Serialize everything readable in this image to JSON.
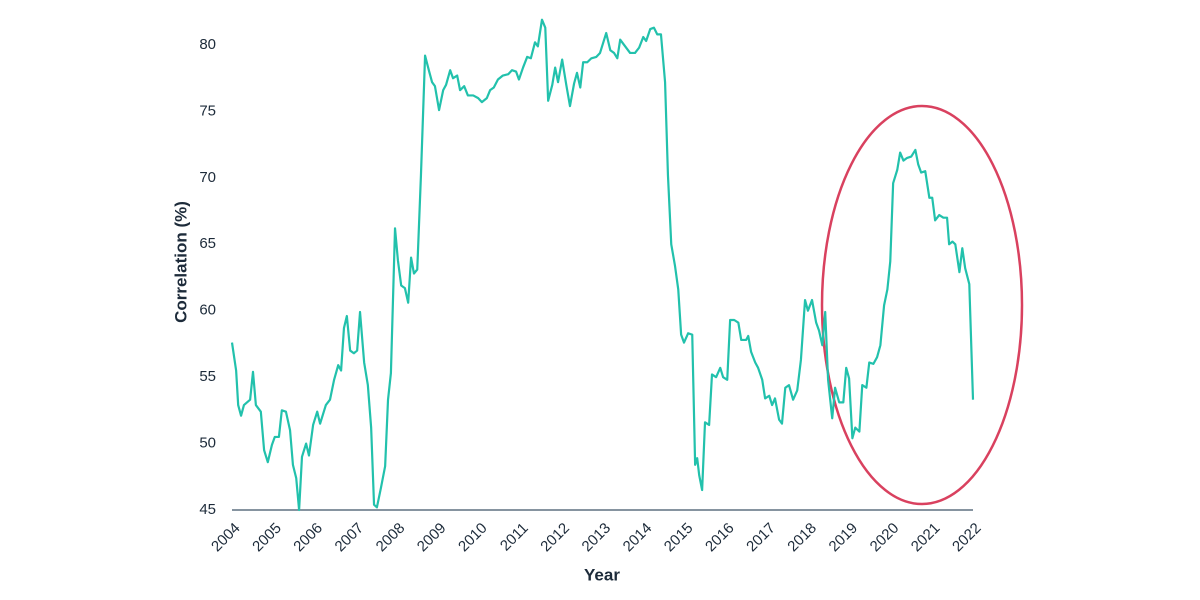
{
  "chart_data": {
    "type": "line",
    "x_label": "Year",
    "y_label": "Correlation (%)",
    "xlim": [
      2004,
      2022
    ],
    "xticks": [
      2004,
      2005,
      2006,
      2007,
      2008,
      2009,
      2010,
      2011,
      2012,
      2013,
      2014,
      2015,
      2016,
      2017,
      2018,
      2019,
      2020,
      2021,
      2022
    ],
    "ylim": [
      45,
      82
    ],
    "yticks": [
      45,
      50,
      55,
      60,
      65,
      70,
      75,
      80
    ],
    "grid": false,
    "series": [
      {
        "color": "#22c1ac",
        "x": [
          2004.0,
          2004.1,
          2004.15,
          2004.22,
          2004.29,
          2004.44,
          2004.51,
          2004.58,
          2004.7,
          2004.78,
          2004.87,
          2004.97,
          2005.04,
          2005.14,
          2005.21,
          2005.31,
          2005.41,
          2005.48,
          2005.56,
          2005.63,
          2005.7,
          2005.8,
          2005.87,
          2005.97,
          2006.07,
          2006.14,
          2006.28,
          2006.38,
          2006.48,
          2006.58,
          2006.65,
          2006.72,
          2006.79,
          2006.87,
          2006.96,
          2007.04,
          2007.11,
          2007.21,
          2007.3,
          2007.38,
          2007.45,
          2007.52,
          2007.62,
          2007.72,
          2007.79,
          2007.86,
          2007.96,
          2008.03,
          2008.11,
          2008.2,
          2008.28,
          2008.35,
          2008.42,
          2008.5,
          2008.59,
          2008.69,
          2008.79,
          2008.86,
          2008.93,
          2009.03,
          2009.13,
          2009.2,
          2009.3,
          2009.37,
          2009.47,
          2009.54,
          2009.64,
          2009.73,
          2009.86,
          2009.98,
          2010.07,
          2010.19,
          2010.27,
          2010.36,
          2010.46,
          2010.58,
          2010.71,
          2010.8,
          2010.9,
          2010.97,
          2011.07,
          2011.17,
          2011.26,
          2011.36,
          2011.43,
          2011.53,
          2011.61,
          2011.68,
          2011.78,
          2011.85,
          2011.92,
          2012.02,
          2012.12,
          2012.21,
          2012.31,
          2012.38,
          2012.46,
          2012.53,
          2012.63,
          2012.73,
          2012.85,
          2012.94,
          2013.04,
          2013.09,
          2013.19,
          2013.28,
          2013.36,
          2013.43,
          2013.55,
          2013.67,
          2013.79,
          2013.89,
          2013.99,
          2014.06,
          2014.16,
          2014.25,
          2014.33,
          2014.42,
          2014.52,
          2014.59,
          2014.67,
          2014.76,
          2014.84,
          2014.91,
          2014.98,
          2015.08,
          2015.18,
          2015.25,
          2015.3,
          2015.35,
          2015.42,
          2015.49,
          2015.59,
          2015.66,
          2015.76,
          2015.86,
          2015.93,
          2016.03,
          2016.1,
          2016.2,
          2016.3,
          2016.37,
          2016.49,
          2016.54,
          2016.61,
          2016.71,
          2016.78,
          2016.88,
          2016.95,
          2017.05,
          2017.12,
          2017.19,
          2017.29,
          2017.36,
          2017.44,
          2017.53,
          2017.63,
          2017.73,
          2017.82,
          2017.92,
          2017.99,
          2018.09,
          2018.19,
          2018.26,
          2018.34,
          2018.41,
          2018.48,
          2018.58,
          2018.65,
          2018.75,
          2018.85,
          2018.92,
          2018.99,
          2019.07,
          2019.14,
          2019.24,
          2019.31,
          2019.41,
          2019.48,
          2019.58,
          2019.67,
          2019.75,
          2019.84,
          2019.92,
          2019.99,
          2020.06,
          2020.16,
          2020.23,
          2020.31,
          2020.4,
          2020.5,
          2020.6,
          2020.67,
          2020.74,
          2020.84,
          2020.94,
          2021.01,
          2021.08,
          2021.18,
          2021.28,
          2021.37,
          2021.42,
          2021.5,
          2021.57,
          2021.67,
          2021.74,
          2021.81,
          2021.91,
          2022.0
        ],
        "values": [
          57.6,
          55.5,
          52.9,
          52.1,
          52.9,
          53.3,
          55.4,
          52.9,
          52.4,
          49.5,
          48.6,
          49.9,
          50.5,
          50.5,
          52.5,
          52.4,
          51.0,
          48.4,
          47.4,
          45.0,
          49.0,
          50.0,
          49.1,
          51.4,
          52.4,
          51.5,
          52.9,
          53.3,
          54.8,
          55.9,
          55.5,
          58.7,
          59.6,
          57.0,
          56.8,
          57.0,
          59.9,
          56.1,
          54.4,
          51.2,
          45.4,
          45.2,
          46.7,
          48.3,
          53.3,
          55.3,
          66.2,
          63.8,
          61.9,
          61.7,
          60.6,
          64.0,
          62.8,
          63.1,
          70.2,
          79.2,
          78.0,
          77.2,
          76.9,
          75.1,
          76.6,
          77.0,
          78.1,
          77.5,
          77.7,
          76.6,
          76.9,
          76.2,
          76.2,
          76.0,
          75.7,
          76.0,
          76.6,
          76.8,
          77.4,
          77.7,
          77.8,
          78.1,
          78.0,
          77.4,
          78.3,
          79.1,
          79.0,
          80.2,
          79.9,
          81.9,
          81.3,
          75.8,
          77.0,
          78.3,
          77.2,
          78.9,
          77.0,
          75.4,
          77.1,
          77.9,
          76.8,
          78.7,
          78.7,
          79.0,
          79.1,
          79.4,
          80.4,
          80.9,
          79.6,
          79.4,
          79.0,
          80.4,
          79.9,
          79.4,
          79.4,
          79.8,
          80.6,
          80.3,
          81.2,
          81.3,
          80.8,
          80.8,
          77.2,
          70.2,
          65.0,
          63.4,
          61.6,
          58.2,
          57.6,
          58.3,
          58.2,
          48.4,
          48.9,
          47.6,
          46.5,
          51.6,
          51.4,
          55.2,
          55.0,
          55.7,
          55.0,
          54.8,
          59.3,
          59.3,
          59.1,
          57.8,
          57.8,
          58.1,
          56.9,
          56.1,
          55.7,
          54.8,
          53.4,
          53.6,
          52.9,
          53.4,
          51.8,
          51.5,
          54.2,
          54.4,
          53.3,
          54.0,
          56.3,
          60.8,
          60.0,
          60.8,
          59.1,
          58.5,
          57.4,
          59.9,
          54.8,
          51.9,
          54.2,
          53.1,
          53.1,
          55.7,
          54.9,
          50.4,
          51.2,
          50.9,
          54.4,
          54.2,
          56.1,
          56.0,
          56.5,
          57.4,
          60.4,
          61.6,
          63.7,
          69.6,
          70.6,
          71.9,
          71.3,
          71.5,
          71.6,
          72.1,
          71.0,
          70.4,
          70.5,
          68.5,
          68.5,
          66.8,
          67.2,
          67.0,
          67.0,
          65.0,
          65.2,
          65.0,
          62.9,
          64.7,
          63.2,
          62.0,
          53.3
        ]
      }
    ]
  }
}
